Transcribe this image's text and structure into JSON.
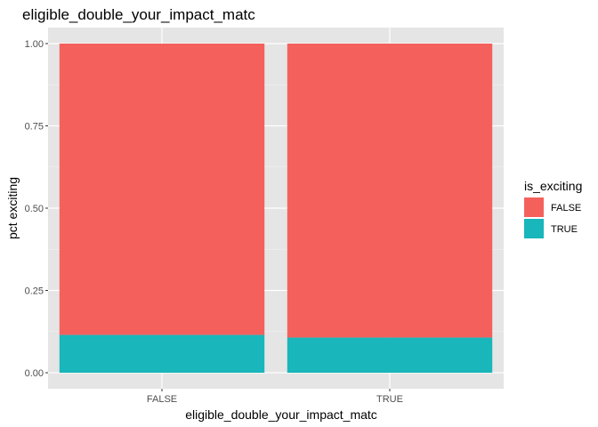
{
  "chart_data": {
    "type": "bar",
    "stacked": true,
    "title": "eligible_double_your_impact_matc",
    "xlabel": "eligible_double_your_impact_matc",
    "ylabel": "pct exciting",
    "categories": [
      "FALSE",
      "TRUE"
    ],
    "ylim": [
      0,
      1
    ],
    "yticks": [
      "0.00",
      "0.25",
      "0.50",
      "0.75",
      "1.00"
    ],
    "ytick_values": [
      0,
      0.25,
      0.5,
      0.75,
      1.0
    ],
    "grid": true,
    "legend": {
      "title": "is_exciting",
      "position": "right",
      "entries": [
        "FALSE",
        "TRUE"
      ]
    },
    "series": [
      {
        "name": "TRUE",
        "color": "#19b6bb",
        "values": [
          0.115,
          0.107
        ]
      },
      {
        "name": "FALSE",
        "color": "#f4615d",
        "values": [
          0.885,
          0.893
        ]
      }
    ]
  },
  "colors": {
    "panel_background": "#e5e5e5",
    "grid_major": "#ffffff",
    "grid_minor": "#f2f2f2",
    "false_fill": "#f4615d",
    "true_fill": "#19b6bb"
  }
}
